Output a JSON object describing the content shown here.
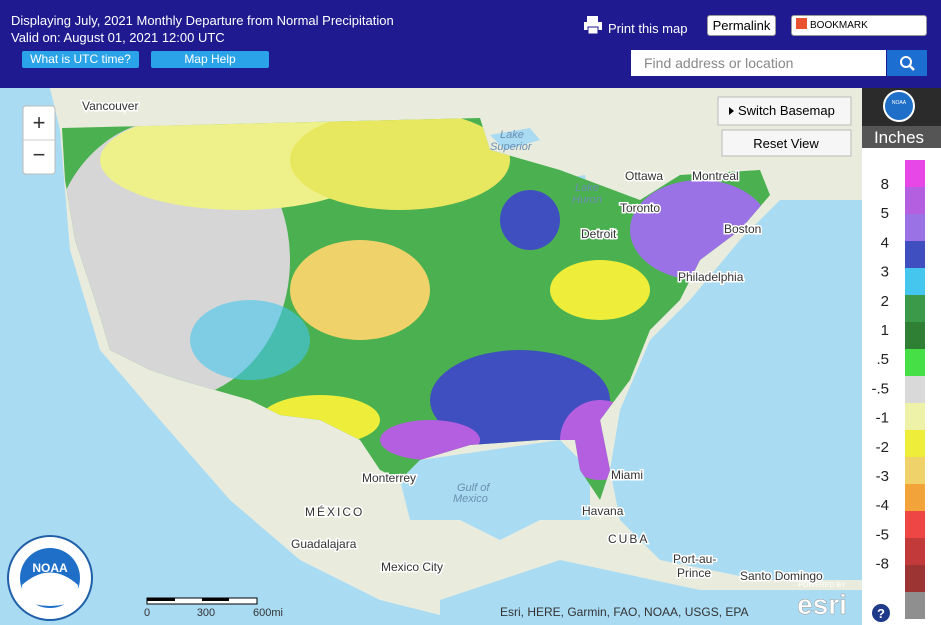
{
  "header": {
    "title": "Displaying July, 2021 Monthly Departure from Normal Precipitation",
    "valid": "Valid on: August 01, 2021 12:00 UTC",
    "print": "Print this map",
    "permalink": "Permalink",
    "bookmark": "BOOKMARK",
    "utc_button": "What is UTC time?",
    "help_button": "Map Help",
    "search_placeholder": "Find address or location"
  },
  "map": {
    "zoom_in": "+",
    "zoom_out": "−",
    "switch_basemap": "Switch Basemap",
    "reset_view": "Reset View",
    "labels": [
      "Vancouver",
      "Lake",
      "Superior",
      "Ottawa",
      "Montreal",
      "Toronto",
      "Lake",
      "Huron",
      "Detroit",
      "Boston",
      "Philadelphia",
      "Monterrey",
      "Gulf of",
      "Mexico",
      "Miami",
      "Havana",
      "CUBA",
      "MÉXICO",
      "Guadalajara",
      "Mexico City",
      "Port-au-",
      "Prince",
      "Santo Domingo"
    ],
    "scale": [
      "0",
      "300",
      "600mi"
    ],
    "attribution": "Esri, HERE, Garmin, FAO, NOAA, USGS, EPA",
    "powered_by": "POWERED BY",
    "esri": "esri",
    "noaa": "NOAA"
  },
  "legend": {
    "logo": "NOAA",
    "title": "Inches",
    "labels": [
      "8",
      "5",
      "4",
      "3",
      "2",
      "1",
      ".5",
      "-.5",
      "-1",
      "-2",
      "-3",
      "-4",
      "-5",
      "-8"
    ],
    "colors": [
      "#e847e8",
      "#b35fe0",
      "#9a72e6",
      "#3f4fbf",
      "#45c6ef",
      "#3a9a4a",
      "#2f7f35",
      "#46e046",
      "#d9d9d9",
      "#eef2a8",
      "#eeee3a",
      "#f0d26a",
      "#f2a33a",
      "#ee4545",
      "#c23a3a",
      "#9c3434",
      "#8f8f8f"
    ]
  },
  "help": "?"
}
